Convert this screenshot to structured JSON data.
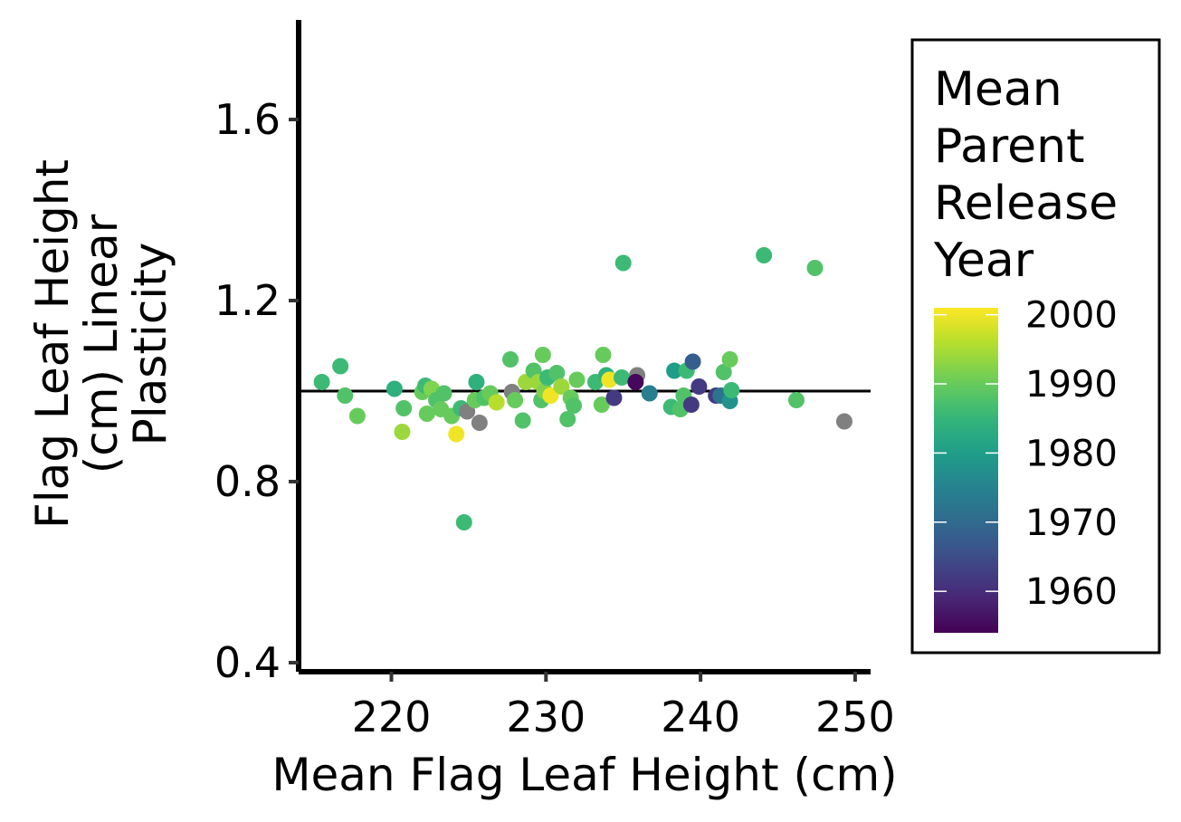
{
  "chart_data": {
    "type": "scatter",
    "title": "",
    "xlabel": "Mean Flag Leaf Height (cm)",
    "ylabel": [
      "Flag Leaf Height",
      "(cm) Linear",
      "Plasticity"
    ],
    "xlim": [
      214,
      251
    ],
    "ylim": [
      0.38,
      1.82
    ],
    "xticks": [
      220,
      230,
      240,
      250
    ],
    "xtick_labels": [
      "220",
      "230",
      "240",
      "250"
    ],
    "yticks": [
      0.4,
      0.8,
      1.2,
      1.6
    ],
    "ytick_labels": [
      "0.4",
      "0.8",
      "1.2",
      "1.6"
    ],
    "reference_line_y": 1.0,
    "grid": false,
    "color_scale": {
      "name": "viridis",
      "title": [
        "Mean",
        "Parent",
        "Release",
        "Year"
      ],
      "min": 1954,
      "max": 2001,
      "breaks": [
        2000,
        1990,
        1980,
        1970,
        1960
      ],
      "break_labels": [
        "2000",
        "1990",
        "1980",
        "1970",
        "1960"
      ],
      "na_color": "#808080"
    },
    "legend_position": "right",
    "points": [
      {
        "x": 215.5,
        "y": 1.02,
        "year": 1986
      },
      {
        "x": 216.7,
        "y": 1.055,
        "year": 1986
      },
      {
        "x": 217.0,
        "y": 0.99,
        "year": 1988
      },
      {
        "x": 217.8,
        "y": 0.945,
        "year": 1990
      },
      {
        "x": 220.2,
        "y": 1.005,
        "year": 1984
      },
      {
        "x": 220.7,
        "y": 0.91,
        "year": 1994
      },
      {
        "x": 220.8,
        "y": 0.962,
        "year": 1988
      },
      {
        "x": 222.0,
        "y": 0.998,
        "year": 1990
      },
      {
        "x": 222.2,
        "y": 1.012,
        "year": 1986
      },
      {
        "x": 222.3,
        "y": 0.95,
        "year": 1990
      },
      {
        "x": 222.6,
        "y": 1.005,
        "year": 1992
      },
      {
        "x": 222.9,
        "y": 0.98,
        "year": 1988
      },
      {
        "x": 223.2,
        "y": 0.96,
        "year": 1990
      },
      {
        "x": 223.4,
        "y": 0.995,
        "year": 1988
      },
      {
        "x": 223.9,
        "y": 0.945,
        "year": 1990
      },
      {
        "x": 224.2,
        "y": 0.905,
        "year": 2000
      },
      {
        "x": 224.5,
        "y": 0.962,
        "year": 1986
      },
      {
        "x": 224.7,
        "y": 0.71,
        "year": 1986
      },
      {
        "x": 224.9,
        "y": 0.955,
        "year": null
      },
      {
        "x": 225.4,
        "y": 0.98,
        "year": 1990
      },
      {
        "x": 225.5,
        "y": 1.02,
        "year": 1984
      },
      {
        "x": 225.7,
        "y": 0.93,
        "year": null
      },
      {
        "x": 226.0,
        "y": 0.985,
        "year": 1988
      },
      {
        "x": 226.4,
        "y": 0.995,
        "year": 1990
      },
      {
        "x": 226.8,
        "y": 0.975,
        "year": 1996
      },
      {
        "x": 227.7,
        "y": 1.07,
        "year": 1988
      },
      {
        "x": 227.8,
        "y": 0.998,
        "year": null
      },
      {
        "x": 228.0,
        "y": 0.98,
        "year": 1990
      },
      {
        "x": 228.5,
        "y": 0.935,
        "year": 1988
      },
      {
        "x": 228.7,
        "y": 1.02,
        "year": 1994
      },
      {
        "x": 229.2,
        "y": 1.045,
        "year": 1988
      },
      {
        "x": 229.5,
        "y": 1.02,
        "year": 1994
      },
      {
        "x": 229.8,
        "y": 1.08,
        "year": 1990
      },
      {
        "x": 229.7,
        "y": 0.98,
        "year": 1988
      },
      {
        "x": 229.9,
        "y": 1.0,
        "year": 1992
      },
      {
        "x": 230.1,
        "y": 1.03,
        "year": 1986
      },
      {
        "x": 230.3,
        "y": 0.99,
        "year": 2000
      },
      {
        "x": 230.7,
        "y": 1.04,
        "year": 1988
      },
      {
        "x": 231.0,
        "y": 1.01,
        "year": 1994
      },
      {
        "x": 231.4,
        "y": 0.938,
        "year": 1988
      },
      {
        "x": 231.6,
        "y": 0.985,
        "year": 1990
      },
      {
        "x": 231.8,
        "y": 0.968,
        "year": 1988
      },
      {
        "x": 232.0,
        "y": 1.025,
        "year": 1990
      },
      {
        "x": 233.2,
        "y": 1.02,
        "year": 1986
      },
      {
        "x": 233.6,
        "y": 0.97,
        "year": 1990
      },
      {
        "x": 233.7,
        "y": 1.08,
        "year": 1990
      },
      {
        "x": 233.9,
        "y": 1.035,
        "year": 1984
      },
      {
        "x": 234.1,
        "y": 1.025,
        "year": 2000
      },
      {
        "x": 234.4,
        "y": 0.985,
        "year": 1962
      },
      {
        "x": 234.9,
        "y": 1.03,
        "year": 1986
      },
      {
        "x": 235.0,
        "y": 1.283,
        "year": 1986
      },
      {
        "x": 235.9,
        "y": 1.035,
        "year": null
      },
      {
        "x": 235.8,
        "y": 1.02,
        "year": 1955
      },
      {
        "x": 236.7,
        "y": 0.995,
        "year": 1974
      },
      {
        "x": 238.1,
        "y": 0.965,
        "year": 1986
      },
      {
        "x": 238.3,
        "y": 1.045,
        "year": 1980
      },
      {
        "x": 238.7,
        "y": 0.96,
        "year": 1988
      },
      {
        "x": 239.1,
        "y": 1.045,
        "year": 1986
      },
      {
        "x": 238.9,
        "y": 0.99,
        "year": 1988
      },
      {
        "x": 239.4,
        "y": 0.97,
        "year": 1962
      },
      {
        "x": 239.5,
        "y": 1.065,
        "year": 1968
      },
      {
        "x": 239.9,
        "y": 1.01,
        "year": 1962
      },
      {
        "x": 241.0,
        "y": 0.99,
        "year": 1962
      },
      {
        "x": 241.3,
        "y": 0.99,
        "year": 1972
      },
      {
        "x": 241.5,
        "y": 1.042,
        "year": 1988
      },
      {
        "x": 241.9,
        "y": 1.07,
        "year": 1990
      },
      {
        "x": 241.9,
        "y": 0.978,
        "year": 1978
      },
      {
        "x": 242.0,
        "y": 1.002,
        "year": 1986
      },
      {
        "x": 244.1,
        "y": 1.3,
        "year": 1986
      },
      {
        "x": 246.2,
        "y": 0.98,
        "year": 1988
      },
      {
        "x": 247.4,
        "y": 1.272,
        "year": 1988
      },
      {
        "x": 249.3,
        "y": 0.933,
        "year": null
      }
    ]
  }
}
